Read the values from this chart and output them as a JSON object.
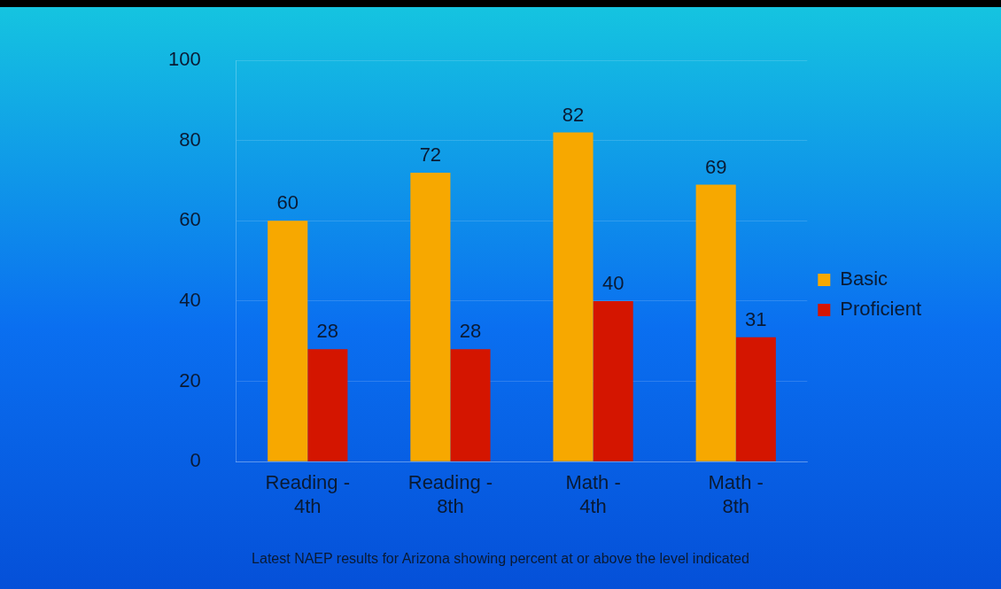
{
  "chart_data": {
    "type": "bar",
    "categories": [
      "Reading - 4th",
      "Reading - 8th",
      "Math - 4th",
      "Math - 8th"
    ],
    "series": [
      {
        "name": "Basic",
        "color": "#f7a800",
        "values": [
          60,
          72,
          82,
          69
        ]
      },
      {
        "name": "Proficient",
        "color": "#d41500",
        "values": [
          28,
          28,
          40,
          31
        ]
      }
    ],
    "ylim": [
      0,
      100
    ],
    "yticks": [
      0,
      20,
      40,
      60,
      80,
      100
    ],
    "grid": "y",
    "legend": "right",
    "data_labels": true,
    "annotations": [
      "Latest NAEP results for Arizona showing percent at or above the level indicated"
    ]
  }
}
